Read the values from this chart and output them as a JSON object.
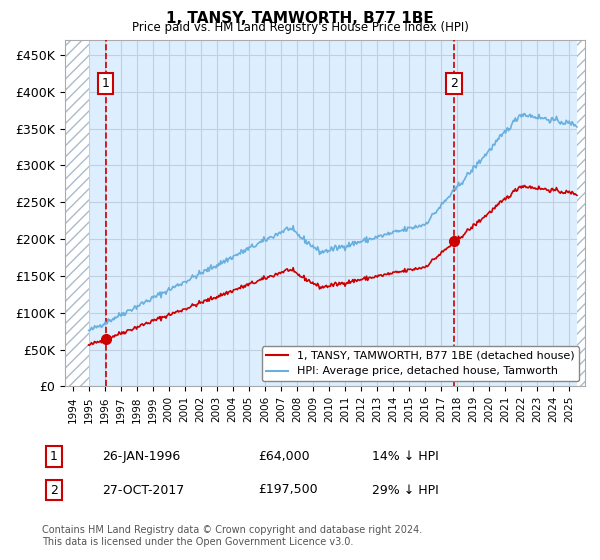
{
  "title": "1, TANSY, TAMWORTH, B77 1BE",
  "subtitle": "Price paid vs. HM Land Registry's House Price Index (HPI)",
  "yticks": [
    0,
    50000,
    100000,
    150000,
    200000,
    250000,
    300000,
    350000,
    400000,
    450000
  ],
  "ytick_labels": [
    "£0",
    "£50K",
    "£100K",
    "£150K",
    "£200K",
    "£250K",
    "£300K",
    "£350K",
    "£400K",
    "£450K"
  ],
  "xlim_start": 1993.5,
  "xlim_end": 2026.0,
  "ylim_min": 0,
  "ylim_max": 470000,
  "hpi_color": "#6ab0de",
  "price_color": "#cc0000",
  "dashed_line_color": "#cc0000",
  "grid_color": "#c0d0e0",
  "bg_color": "#ddeeff",
  "sale1_x": 1996.07,
  "sale1_y": 64000,
  "sale2_x": 2017.82,
  "sale2_y": 197500,
  "legend_label1": "1, TANSY, TAMWORTH, B77 1BE (detached house)",
  "legend_label2": "HPI: Average price, detached house, Tamworth",
  "annotation1_label": "1",
  "annotation1_date": "26-JAN-1996",
  "annotation1_price": "£64,000",
  "annotation1_hpi": "14% ↓ HPI",
  "annotation2_label": "2",
  "annotation2_date": "27-OCT-2017",
  "annotation2_price": "£197,500",
  "annotation2_hpi": "29% ↓ HPI",
  "footer": "Contains HM Land Registry data © Crown copyright and database right 2024.\nThis data is licensed under the Open Government Licence v3.0."
}
